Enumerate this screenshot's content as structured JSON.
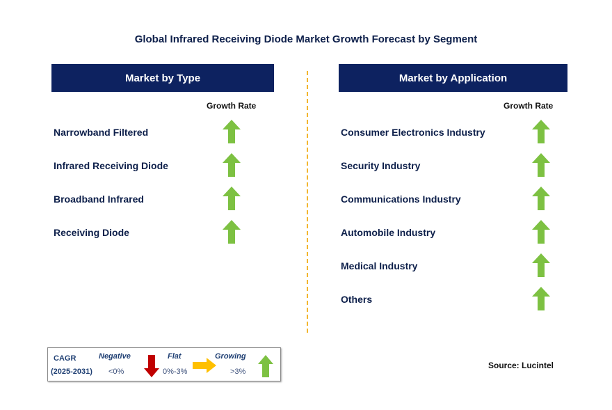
{
  "title": "Global Infrared Receiving Diode Market Growth Forecast by Segment",
  "left_panel": {
    "header": "Market by Type",
    "growth_rate_label": "Growth Rate",
    "items": [
      {
        "label": "Narrowband Filtered",
        "trend": "growing"
      },
      {
        "label": "Infrared Receiving Diode",
        "trend": "growing"
      },
      {
        "label": "Broadband Infrared",
        "trend": "growing"
      },
      {
        "label": "Receiving Diode",
        "trend": "growing"
      }
    ]
  },
  "right_panel": {
    "header": "Market by Application",
    "growth_rate_label": "Growth Rate",
    "items": [
      {
        "label": "Consumer Electronics Industry",
        "trend": "growing"
      },
      {
        "label": "Security Industry",
        "trend": "growing"
      },
      {
        "label": "Communications Industry",
        "trend": "growing"
      },
      {
        "label": "Automobile Industry",
        "trend": "growing"
      },
      {
        "label": "Medical Industry",
        "trend": "growing"
      },
      {
        "label": "Others",
        "trend": "growing"
      }
    ]
  },
  "legend": {
    "cagr_label": "CAGR",
    "years_label": "(2025-2031)",
    "negative_label": "Negative",
    "negative_value": "<0%",
    "flat_label": "Flat",
    "flat_value": "0%-3%",
    "growing_label": "Growing",
    "growing_value": ">3%"
  },
  "source": "Source: Lucintel",
  "colors": {
    "header_bg": "#0d2260",
    "growing_arrow": "#7dc142",
    "negative_arrow": "#c00000",
    "flat_arrow": "#ffc000",
    "divider": "#f2b630"
  }
}
